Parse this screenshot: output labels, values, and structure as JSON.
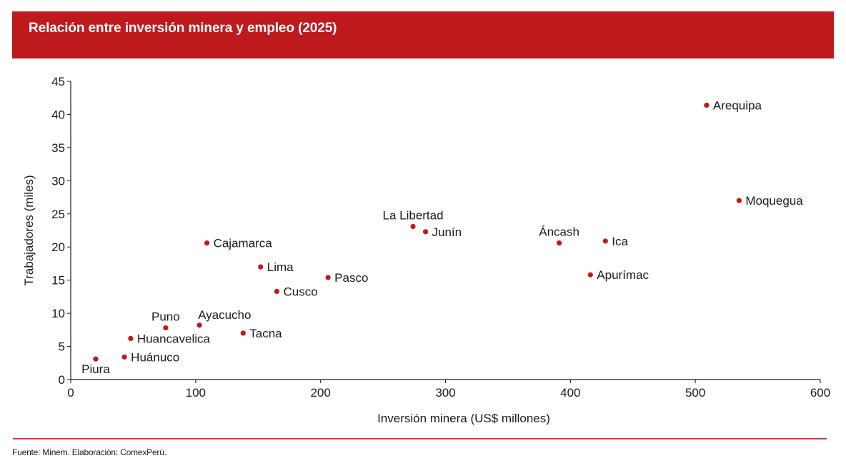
{
  "header": {
    "title": "Relación entre inversión minera y empleo (2025)"
  },
  "colors": {
    "banner": "#BE1A1E",
    "point": "#C0181F",
    "footer_rule": "#D9353D",
    "text": "#1a1a1a"
  },
  "chart_data": {
    "type": "scatter",
    "title": "Relación entre inversión minera y empleo (2025)",
    "xlabel": "Inversión minera (US$ millones)",
    "ylabel": "Trabajadores (miles)",
    "xlim": [
      0,
      600
    ],
    "ylim": [
      0,
      45
    ],
    "xticks": [
      0,
      100,
      200,
      300,
      400,
      500,
      600
    ],
    "yticks": [
      0,
      5,
      10,
      15,
      20,
      25,
      30,
      35,
      40,
      45
    ],
    "grid": false,
    "legend": "none",
    "points": [
      {
        "label": "Piura",
        "x": 20,
        "y": 3.1,
        "label_pos": "below"
      },
      {
        "label": "Huánuco",
        "x": 43,
        "y": 3.4,
        "label_pos": "right"
      },
      {
        "label": "Huancavelica",
        "x": 48,
        "y": 6.2,
        "label_pos": "right"
      },
      {
        "label": "Puno",
        "x": 76,
        "y": 7.8,
        "label_pos": "above"
      },
      {
        "label": "Ayacucho",
        "x": 103,
        "y": 8.2,
        "label_pos": "above-right"
      },
      {
        "label": "Cajamarca",
        "x": 109,
        "y": 20.6,
        "label_pos": "right"
      },
      {
        "label": "Tacna",
        "x": 138,
        "y": 7.0,
        "label_pos": "right"
      },
      {
        "label": "Lima",
        "x": 152,
        "y": 17.0,
        "label_pos": "right"
      },
      {
        "label": "Cusco",
        "x": 165,
        "y": 13.3,
        "label_pos": "right"
      },
      {
        "label": "Pasco",
        "x": 206,
        "y": 15.4,
        "label_pos": "right"
      },
      {
        "label": "La Libertad",
        "x": 274,
        "y": 23.1,
        "label_pos": "above"
      },
      {
        "label": "Junín",
        "x": 284,
        "y": 22.3,
        "label_pos": "right"
      },
      {
        "label": "Áncash",
        "x": 391,
        "y": 20.6,
        "label_pos": "above"
      },
      {
        "label": "Apurímac",
        "x": 416,
        "y": 15.8,
        "label_pos": "right"
      },
      {
        "label": "Ica",
        "x": 428,
        "y": 20.9,
        "label_pos": "right"
      },
      {
        "label": "Arequipa",
        "x": 509,
        "y": 41.4,
        "label_pos": "right"
      },
      {
        "label": "Moquegua",
        "x": 535,
        "y": 27.0,
        "label_pos": "right"
      }
    ]
  },
  "footer": {
    "source": "Fuente: Minem. Elaboración: ComexPerú."
  }
}
